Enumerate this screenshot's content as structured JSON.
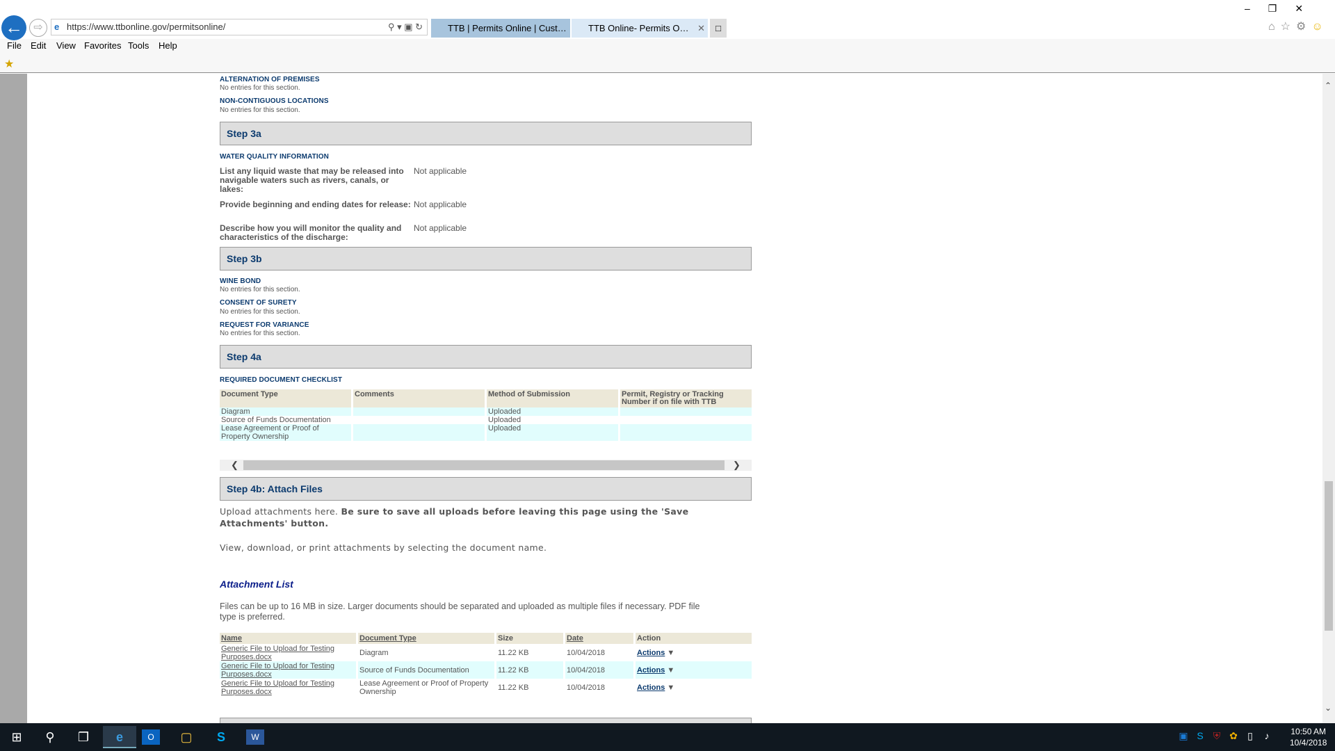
{
  "browser": {
    "url": "https://www.ttbonline.gov/permitsonline/",
    "tabs": [
      {
        "label": "TTB | Permits Online | Custom..."
      },
      {
        "label": "TTB Online- Permits Online..."
      }
    ],
    "menu": [
      "File",
      "Edit",
      "View",
      "Favorites",
      "Tools",
      "Help"
    ]
  },
  "sections": {
    "alternation": {
      "title": "ALTERNATION OF PREMISES",
      "text": "No entries for this section."
    },
    "noncontig": {
      "title": "NON-CONTIGUOUS LOCATIONS",
      "text": "No entries for this section."
    },
    "step3a": "Step 3a",
    "water": {
      "title": "WATER QUALITY INFORMATION",
      "q": [
        {
          "label": "List any liquid waste that may be released into navigable waters such as rivers, canals, or lakes:",
          "value": "Not applicable"
        },
        {
          "label": "Provide beginning and ending dates for release:",
          "value": "Not applicable"
        },
        {
          "label": "Describe how you will monitor the quality and characteristics of the discharge:",
          "value": "Not applicable"
        }
      ]
    },
    "step3b": "Step 3b",
    "wine": {
      "title": "WINE BOND",
      "text": "No entries for this section."
    },
    "consent": {
      "title": "CONSENT OF SURETY",
      "text": "No entries for this section."
    },
    "variance": {
      "title": "REQUEST FOR VARIANCE",
      "text": "No entries for this section."
    },
    "step4a": "Step 4a",
    "checklist": {
      "title": "REQUIRED DOCUMENT CHECKLIST",
      "headers": [
        "Document Type",
        "Comments",
        "Method of Submission",
        "Permit, Registry or Tracking Number if on file with TTB"
      ],
      "rows": [
        [
          "Diagram",
          "",
          "Uploaded",
          ""
        ],
        [
          "Source of Funds Documentation",
          "",
          "Uploaded",
          ""
        ],
        [
          "Lease Agreement or Proof of Property Ownership",
          "",
          "Uploaded",
          ""
        ]
      ]
    },
    "step4b": "Step 4b: Attach Files",
    "upload": {
      "text1": "Upload attachments here. ",
      "text1_bold": "Be sure to save all uploads before leaving this page using the 'Save Attachments' button.",
      "text2": "View, download, or print attachments by selecting the document name."
    },
    "attachments": {
      "title": "Attachment List",
      "note": "Files can be up to 16 MB in size. Larger documents should be separated and uploaded as multiple files if necessary. PDF file type is preferred.",
      "headers": [
        "Name",
        "Document Type",
        "Size",
        "Date",
        "Action"
      ],
      "rows": [
        [
          "Generic File to Upload for Testing Purposes.docx",
          "Diagram",
          "11.22 KB",
          "10/04/2018",
          "Actions"
        ],
        [
          "Generic File to Upload for Testing Purposes.docx",
          "Source of Funds Documentation",
          "11.22 KB",
          "10/04/2018",
          "Actions"
        ],
        [
          "Generic File to Upload for Testing Purposes.docx",
          "Lease Agreement or Proof of Property Ownership",
          "11.22 KB",
          "10/04/2018",
          "Actions"
        ]
      ]
    }
  },
  "taskbar": {
    "time": "10:50 AM",
    "date": "10/4/2018"
  },
  "colors": {
    "heading": "#0b3a6e",
    "step_bg": "#dedede",
    "row_alt": "#e1fdfd",
    "header_bg": "#ece8d8"
  }
}
